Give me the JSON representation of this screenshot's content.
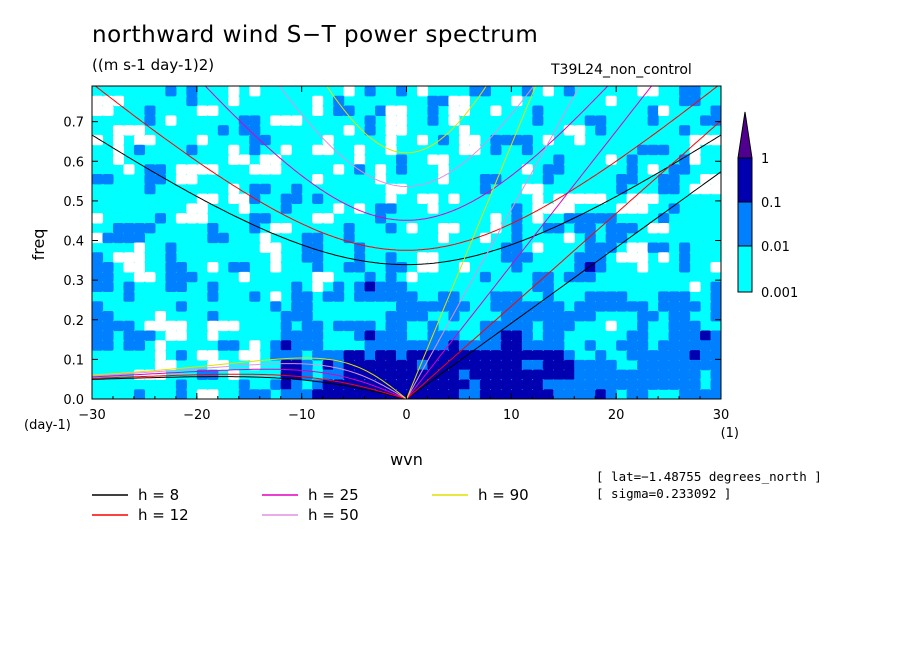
{
  "header": {
    "title": "northward wind S−T power spectrum",
    "units": "((m s-1 day-1)2)",
    "run_name": "T39L24_non_control"
  },
  "chart_data": {
    "type": "heatmap",
    "title": "northward wind S−T power spectrum",
    "xlabel": "wvn",
    "ylabel": "freq",
    "x_unit_label": "(1)",
    "y_unit_label": "(day-1)",
    "xlim": [
      -30,
      30
    ],
    "ylim": [
      0,
      0.79
    ],
    "x_ticks": [
      -30,
      -20,
      -10,
      0,
      10,
      20,
      30
    ],
    "x_tick_labels": [
      "−30",
      "−20",
      "−10",
      "0",
      "10",
      "20",
      "30"
    ],
    "y_ticks": [
      0.0,
      0.1,
      0.2,
      0.3,
      0.4,
      0.5,
      0.6,
      0.7
    ],
    "y_tick_labels": [
      "0.0",
      "0.1",
      "0.2",
      "0.3",
      "0.4",
      "0.5",
      "0.6",
      "0.7"
    ],
    "contour_levels": [
      0.001,
      0.01,
      0.1,
      1
    ],
    "colorbar": {
      "labels": [
        "1",
        "0.1",
        "0.01",
        "0.001"
      ],
      "colors": [
        "#ffffff",
        "#00ffff",
        "#0080ff",
        "#0000b0",
        "#500090"
      ]
    },
    "dispersion_curves": [
      {
        "name": "h =  8",
        "h": 8,
        "color": "#000000"
      },
      {
        "name": "h = 12",
        "h": 12,
        "color": "#ff0000"
      },
      {
        "name": "h = 25",
        "h": 25,
        "color": "#e000c0"
      },
      {
        "name": "h = 50",
        "h": 50,
        "color": "#e090e0"
      },
      {
        "name": "h = 90",
        "h": 90,
        "color": "#e0e000"
      }
    ],
    "legend_position": "bottom-left",
    "grid": false
  },
  "info": {
    "lat": "[ lat=−1.48755 degrees_north ]",
    "sigma": "[ sigma=0.233092 ]"
  }
}
